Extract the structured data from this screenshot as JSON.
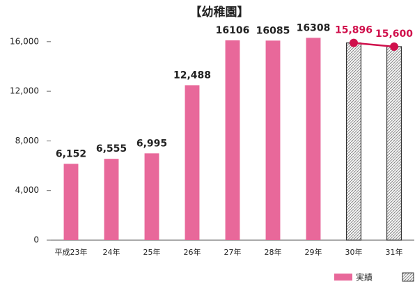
{
  "chart_data": {
    "type": "bar",
    "title": "【幼稚園】",
    "categories": [
      "平成23年",
      "24年",
      "25年",
      "26年",
      "27年",
      "28年",
      "29年",
      "30年",
      "31年"
    ],
    "series": [
      {
        "name": "実績",
        "color": "#e8689a",
        "values": [
          6152,
          6555,
          6995,
          12488,
          16106,
          16085,
          16308,
          null,
          null
        ],
        "value_labels": [
          "6,152",
          "6,555",
          "6,995",
          "12,488",
          "16106",
          "16085",
          "16308",
          null,
          null
        ]
      },
      {
        "color": "#d0104c",
        "values": [
          null,
          null,
          null,
          null,
          null,
          null,
          null,
          15896,
          15600
        ],
        "value_labels": [
          null,
          null,
          null,
          null,
          null,
          null,
          null,
          "15,896",
          "15,600"
        ]
      }
    ],
    "ylim": [
      0,
      17000
    ],
    "yticks": [
      0,
      {
        "value": 4000,
        "label": "4,000"
      },
      {
        "value": 8000,
        "label": "8,000"
      },
      {
        "value": 12000,
        "label": "12,000"
      },
      {
        "value": 16000,
        "label": "16,000"
      }
    ],
    "grid": false
  }
}
